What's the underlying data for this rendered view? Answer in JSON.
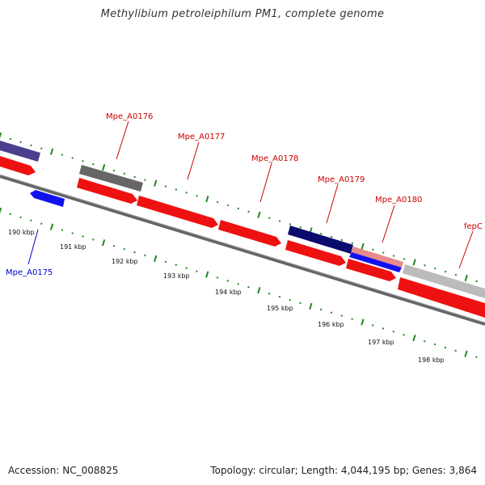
{
  "title": "Methylibium petroleiphilum PM1, complete genome",
  "footer": {
    "accession": "Accession: NC_008825",
    "topology": "Topology: circular; Length: 4,044,195 bp; Genes: 3,864"
  },
  "kbp_labels": [
    "190 kbp",
    "191 kbp",
    "192 kbp",
    "193 kbp",
    "194 kbp",
    "195 kbp",
    "196 kbp",
    "197 kbp",
    "198 kbp"
  ],
  "gene_labels": [
    {
      "text": "Mpe_A0175",
      "color": "#0000cc"
    },
    {
      "text": "Mpe_A0176",
      "color": "#cc0000"
    },
    {
      "text": "Mpe_A0177",
      "color": "#cc0000"
    },
    {
      "text": "Mpe_A0178",
      "color": "#cc0000"
    },
    {
      "text": "Mpe_A0179",
      "color": "#cc0000"
    },
    {
      "text": "Mpe_A0180",
      "color": "#cc0000"
    },
    {
      "text": "fepC",
      "color": "#cc0000"
    }
  ],
  "colors": {
    "forward_cds": "#ee1111",
    "reverse_cds": "#1111ee",
    "backbone": "#777777",
    "ticks": "#228822",
    "cog_purple": "#4a3f8f",
    "cog_gray": "#666666",
    "cog_navy": "#0b0b6e",
    "cog_pink": "#e88a8a",
    "cog_lightgray": "#bbbbbb"
  }
}
